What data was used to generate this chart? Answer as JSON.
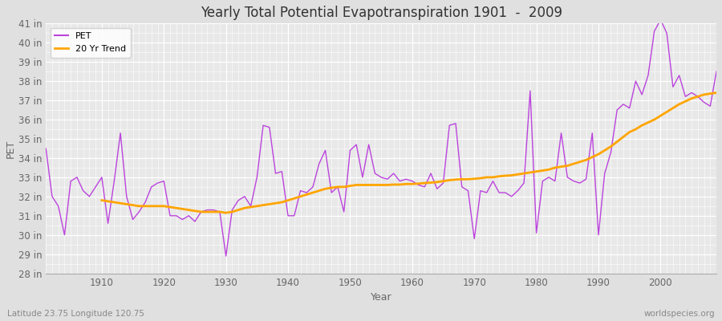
{
  "title": "Yearly Total Potential Evapotranspiration 1901  -  2009",
  "xlabel": "Year",
  "ylabel": "PET",
  "subtitle_left": "Latitude 23.75 Longitude 120.75",
  "subtitle_right": "worldspecies.org",
  "pet_color": "#BB44DD",
  "trend_color": "#FFA500",
  "bg_color": "#E0E0E0",
  "plot_bg_color": "#E8E8E8",
  "ylim": [
    28,
    41
  ],
  "yticks": [
    28,
    29,
    30,
    31,
    32,
    33,
    34,
    35,
    36,
    37,
    38,
    39,
    40,
    41
  ],
  "xlim": [
    1901,
    2009
  ],
  "years": [
    1901,
    1902,
    1903,
    1904,
    1905,
    1906,
    1907,
    1908,
    1909,
    1910,
    1911,
    1912,
    1913,
    1914,
    1915,
    1916,
    1917,
    1918,
    1919,
    1920,
    1921,
    1922,
    1923,
    1924,
    1925,
    1926,
    1927,
    1928,
    1929,
    1930,
    1931,
    1932,
    1933,
    1934,
    1935,
    1936,
    1937,
    1938,
    1939,
    1940,
    1941,
    1942,
    1943,
    1944,
    1945,
    1946,
    1947,
    1948,
    1949,
    1950,
    1951,
    1952,
    1953,
    1954,
    1955,
    1956,
    1957,
    1958,
    1959,
    1960,
    1961,
    1962,
    1963,
    1964,
    1965,
    1966,
    1967,
    1968,
    1969,
    1970,
    1971,
    1972,
    1973,
    1974,
    1975,
    1976,
    1977,
    1978,
    1979,
    1980,
    1981,
    1982,
    1983,
    1984,
    1985,
    1986,
    1987,
    1988,
    1989,
    1990,
    1991,
    1992,
    1993,
    1994,
    1995,
    1996,
    1997,
    1998,
    1999,
    2000,
    2001,
    2002,
    2003,
    2004,
    2005,
    2006,
    2007,
    2008,
    2009
  ],
  "pet_values": [
    34.5,
    32.0,
    31.5,
    30.0,
    32.8,
    33.0,
    32.3,
    32.0,
    32.5,
    33.0,
    30.6,
    32.8,
    35.3,
    32.0,
    30.8,
    31.2,
    31.7,
    32.5,
    32.7,
    32.8,
    31.0,
    31.0,
    30.8,
    31.0,
    30.7,
    31.2,
    31.3,
    31.3,
    31.2,
    28.9,
    31.3,
    31.8,
    32.0,
    31.5,
    33.0,
    35.7,
    35.6,
    33.2,
    33.3,
    31.0,
    31.0,
    32.3,
    32.2,
    32.5,
    33.7,
    34.4,
    32.2,
    32.5,
    31.2,
    34.4,
    34.7,
    33.0,
    34.7,
    33.2,
    33.0,
    32.9,
    33.2,
    32.8,
    32.9,
    32.8,
    32.6,
    32.5,
    33.2,
    32.4,
    32.7,
    35.7,
    35.8,
    32.5,
    32.3,
    29.8,
    32.3,
    32.2,
    32.8,
    32.2,
    32.2,
    32.0,
    32.3,
    32.7,
    37.5,
    30.1,
    32.8,
    33.0,
    32.8,
    35.3,
    33.0,
    32.8,
    32.7,
    32.9,
    35.3,
    30.0,
    33.2,
    34.3,
    36.5,
    36.8,
    36.6,
    38.0,
    37.3,
    38.3,
    40.6,
    41.2,
    40.5,
    37.7,
    38.3,
    37.2,
    37.4,
    37.2,
    36.9,
    36.7,
    38.5
  ],
  "trend_values": [
    null,
    null,
    null,
    null,
    null,
    null,
    null,
    null,
    null,
    31.8,
    31.75,
    31.7,
    31.65,
    31.6,
    31.55,
    31.5,
    31.5,
    31.5,
    31.5,
    31.5,
    31.45,
    31.4,
    31.35,
    31.3,
    31.25,
    31.2,
    31.2,
    31.2,
    31.2,
    31.15,
    31.2,
    31.3,
    31.4,
    31.45,
    31.5,
    31.55,
    31.6,
    31.65,
    31.7,
    31.8,
    31.9,
    32.0,
    32.1,
    32.2,
    32.3,
    32.4,
    32.45,
    32.5,
    32.5,
    32.55,
    32.6,
    32.6,
    32.6,
    32.6,
    32.6,
    32.6,
    32.62,
    32.62,
    32.65,
    32.65,
    32.67,
    32.7,
    32.72,
    32.75,
    32.8,
    32.85,
    32.88,
    32.9,
    32.9,
    32.92,
    32.95,
    33.0,
    33.0,
    33.05,
    33.08,
    33.1,
    33.15,
    33.2,
    33.25,
    33.3,
    33.35,
    33.4,
    33.5,
    33.55,
    33.6,
    33.7,
    33.8,
    33.9,
    34.05,
    34.2,
    34.4,
    34.6,
    34.85,
    35.1,
    35.35,
    35.5,
    35.7,
    35.85,
    36.0,
    36.2,
    36.4,
    36.6,
    36.8,
    36.95,
    37.1,
    37.2,
    37.3,
    37.35,
    37.4
  ]
}
